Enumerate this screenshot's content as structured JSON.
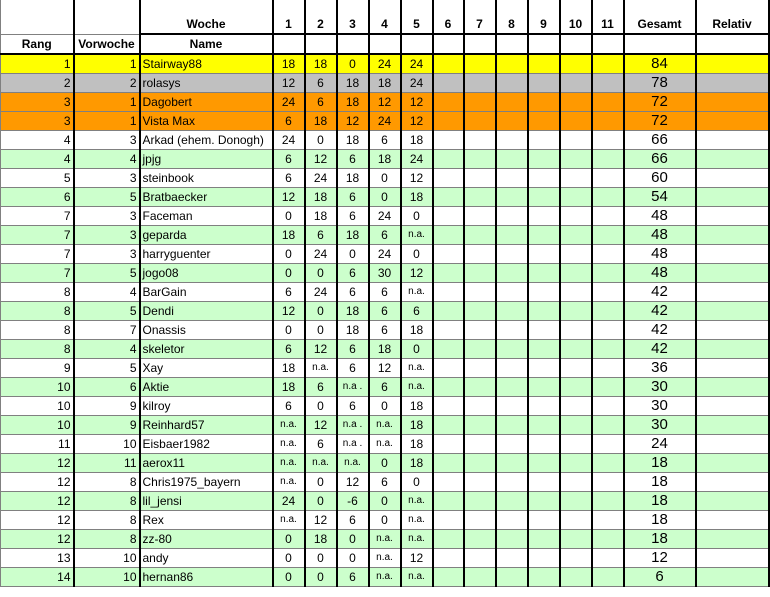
{
  "header": {
    "rang": "Rang",
    "vorwoche": "Vorwoche",
    "woche": "Woche",
    "name": "Name",
    "weeks": [
      "1",
      "2",
      "3",
      "4",
      "5",
      "6",
      "7",
      "8",
      "9",
      "10",
      "11"
    ],
    "gesamt": "Gesamt",
    "relativ": "Relativ"
  },
  "colors": {
    "gold": "#ffff00",
    "silver": "#c0c0c0",
    "bronze": "#ff9900",
    "alt": "#ccffcc"
  },
  "rows": [
    {
      "rang": "1",
      "vorwoche": "1",
      "name": "Stairway88",
      "w": [
        "18",
        "18",
        "0",
        "24",
        "24"
      ],
      "gesamt": "84",
      "style": "yellow"
    },
    {
      "rang": "2",
      "vorwoche": "2",
      "name": "rolasys",
      "w": [
        "12",
        "6",
        "18",
        "18",
        "24"
      ],
      "gesamt": "78",
      "style": "silver"
    },
    {
      "rang": "3",
      "vorwoche": "1",
      "name": "Dagobert",
      "w": [
        "24",
        "6",
        "18",
        "12",
        "12"
      ],
      "gesamt": "72",
      "style": "orange"
    },
    {
      "rang": "3",
      "vorwoche": "1",
      "name": "Vista Max",
      "w": [
        "6",
        "18",
        "12",
        "24",
        "12"
      ],
      "gesamt": "72",
      "style": "orange"
    },
    {
      "rang": "4",
      "vorwoche": "3",
      "name": "Arkad (ehem. Donogh)",
      "w": [
        "24",
        "0",
        "18",
        "6",
        "18"
      ],
      "gesamt": "66",
      "style": "white"
    },
    {
      "rang": "4",
      "vorwoche": "4",
      "name": "jpjg",
      "w": [
        "6",
        "12",
        "6",
        "18",
        "24"
      ],
      "gesamt": "66",
      "style": "green"
    },
    {
      "rang": "5",
      "vorwoche": "3",
      "name": "steinbook",
      "w": [
        "6",
        "24",
        "18",
        "0",
        "12"
      ],
      "gesamt": "60",
      "style": "white"
    },
    {
      "rang": "6",
      "vorwoche": "5",
      "name": "Bratbaecker",
      "w": [
        "12",
        "18",
        "6",
        "0",
        "18"
      ],
      "gesamt": "54",
      "style": "green"
    },
    {
      "rang": "7",
      "vorwoche": "3",
      "name": "Faceman",
      "w": [
        "0",
        "18",
        "6",
        "24",
        "0"
      ],
      "gesamt": "48",
      "style": "white"
    },
    {
      "rang": "7",
      "vorwoche": "3",
      "name": "geparda",
      "w": [
        "18",
        "6",
        "18",
        "6",
        "n.a."
      ],
      "gesamt": "48",
      "style": "green"
    },
    {
      "rang": "7",
      "vorwoche": "3",
      "name": "harryguenter",
      "w": [
        "0",
        "24",
        "0",
        "24",
        "0"
      ],
      "gesamt": "48",
      "style": "white"
    },
    {
      "rang": "7",
      "vorwoche": "5",
      "name": "jogo08",
      "w": [
        "0",
        "0",
        "6",
        "30",
        "12"
      ],
      "gesamt": "48",
      "style": "green"
    },
    {
      "rang": "8",
      "vorwoche": "4",
      "name": "BarGain",
      "w": [
        "6",
        "24",
        "6",
        "6",
        "n.a."
      ],
      "gesamt": "42",
      "style": "white"
    },
    {
      "rang": "8",
      "vorwoche": "5",
      "name": "Dendi",
      "w": [
        "12",
        "0",
        "18",
        "6",
        "6"
      ],
      "gesamt": "42",
      "style": "green"
    },
    {
      "rang": "8",
      "vorwoche": "7",
      "name": "Onassis",
      "w": [
        "0",
        "0",
        "18",
        "6",
        "18"
      ],
      "gesamt": "42",
      "style": "white"
    },
    {
      "rang": "8",
      "vorwoche": "4",
      "name": "skeletor",
      "w": [
        "6",
        "12",
        "6",
        "18",
        "0"
      ],
      "gesamt": "42",
      "style": "green"
    },
    {
      "rang": "9",
      "vorwoche": "5",
      "name": "Xay",
      "w": [
        "18",
        "n.a.",
        "6",
        "12",
        "n.a."
      ],
      "gesamt": "36",
      "style": "white"
    },
    {
      "rang": "10",
      "vorwoche": "6",
      "name": "Aktie",
      "w": [
        "18",
        "6",
        "n.a .",
        "6",
        "n.a."
      ],
      "gesamt": "30",
      "style": "green"
    },
    {
      "rang": "10",
      "vorwoche": "9",
      "name": "kilroy",
      "w": [
        "6",
        "0",
        "6",
        "0",
        "18"
      ],
      "gesamt": "30",
      "style": "white"
    },
    {
      "rang": "10",
      "vorwoche": "9",
      "name": "Reinhard57",
      "w": [
        "n.a.",
        "12",
        "n.a .",
        "n.a.",
        "18"
      ],
      "gesamt": "30",
      "style": "green"
    },
    {
      "rang": "11",
      "vorwoche": "10",
      "name": "Eisbaer1982",
      "w": [
        "n.a.",
        "6",
        "n.a .",
        "n.a.",
        "18"
      ],
      "gesamt": "24",
      "style": "white"
    },
    {
      "rang": "12",
      "vorwoche": "11",
      "name": "aerox11",
      "w": [
        "n.a.",
        "n.a.",
        "n.a.",
        "0",
        "18"
      ],
      "gesamt": "18",
      "style": "green"
    },
    {
      "rang": "12",
      "vorwoche": "8",
      "name": "Chris1975_bayern",
      "w": [
        "n.a.",
        "0",
        "12",
        "6",
        "0"
      ],
      "gesamt": "18",
      "style": "white"
    },
    {
      "rang": "12",
      "vorwoche": "8",
      "name": "lil_jensi",
      "w": [
        "24",
        "0",
        "-6",
        "0",
        "n.a."
      ],
      "gesamt": "18",
      "style": "green"
    },
    {
      "rang": "12",
      "vorwoche": "8",
      "name": "Rex",
      "w": [
        "n.a.",
        "12",
        "6",
        "0",
        "n.a."
      ],
      "gesamt": "18",
      "style": "white"
    },
    {
      "rang": "12",
      "vorwoche": "8",
      "name": "zz-80",
      "w": [
        "0",
        "18",
        "0",
        "n.a.",
        "n.a."
      ],
      "gesamt": "18",
      "style": "green"
    },
    {
      "rang": "13",
      "vorwoche": "10",
      "name": "andy",
      "w": [
        "0",
        "0",
        "0",
        "n.a.",
        "12"
      ],
      "gesamt": "12",
      "style": "white"
    },
    {
      "rang": "14",
      "vorwoche": "10",
      "name": "hernan86",
      "w": [
        "0",
        "0",
        "6",
        "n.a.",
        "n.a."
      ],
      "gesamt": "6",
      "style": "green"
    }
  ]
}
